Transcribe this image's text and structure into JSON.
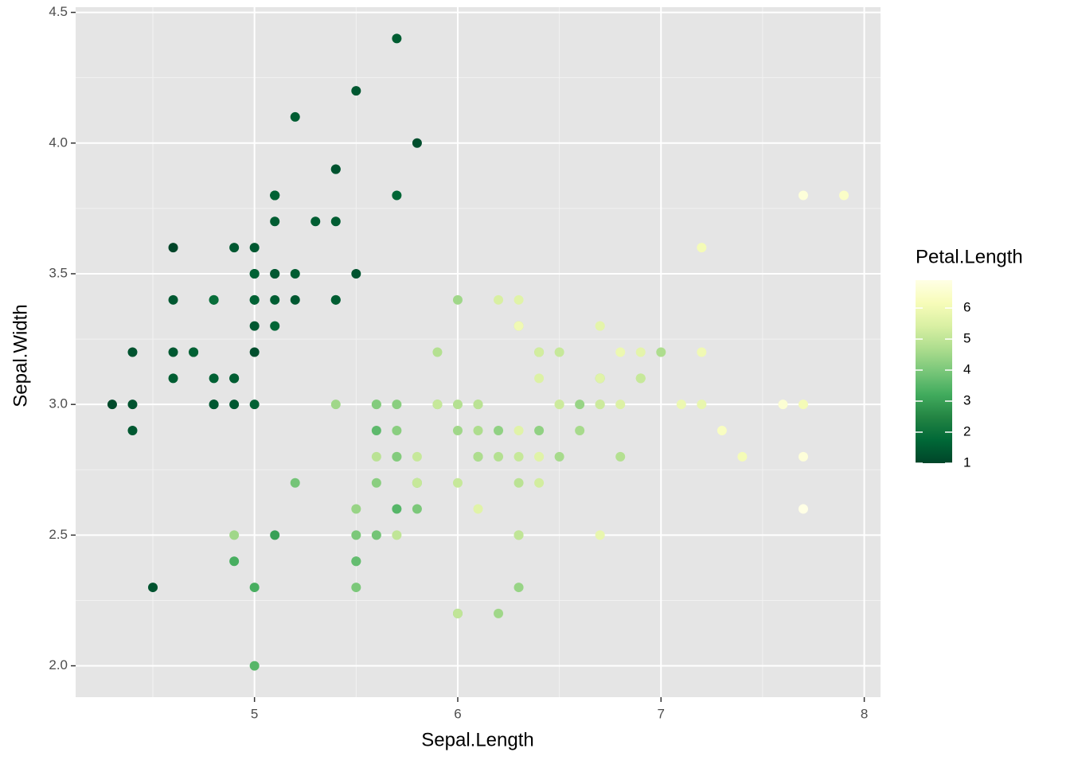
{
  "chart_data": {
    "type": "scatter",
    "x_label": "Sepal.Length",
    "y_label": "Sepal.Width",
    "x": [
      5.1,
      4.9,
      4.7,
      4.6,
      5.0,
      5.4,
      4.6,
      5.0,
      4.4,
      4.9,
      5.4,
      4.8,
      4.8,
      4.3,
      5.8,
      5.7,
      5.4,
      5.1,
      5.7,
      5.1,
      5.4,
      5.1,
      4.6,
      5.1,
      4.8,
      5.0,
      5.0,
      5.2,
      5.2,
      4.7,
      4.8,
      5.4,
      5.2,
      5.5,
      4.9,
      5.0,
      5.5,
      4.9,
      4.4,
      5.1,
      5.0,
      4.5,
      4.4,
      5.0,
      5.1,
      4.8,
      5.1,
      4.6,
      5.3,
      5.0,
      7.0,
      6.4,
      6.9,
      5.5,
      6.5,
      5.7,
      6.3,
      4.9,
      6.6,
      5.2,
      5.0,
      5.9,
      6.0,
      6.1,
      5.6,
      6.7,
      5.6,
      5.8,
      6.2,
      5.6,
      5.9,
      6.1,
      6.3,
      6.1,
      6.4,
      6.6,
      6.8,
      6.7,
      6.0,
      5.7,
      5.5,
      5.5,
      5.8,
      6.0,
      5.4,
      6.0,
      6.7,
      6.3,
      5.6,
      5.5,
      5.5,
      6.1,
      5.8,
      5.0,
      5.6,
      5.7,
      5.7,
      6.2,
      5.1,
      5.7,
      6.3,
      5.8,
      7.1,
      6.3,
      6.5,
      7.6,
      4.9,
      7.3,
      6.7,
      7.2,
      6.5,
      6.4,
      6.8,
      5.7,
      5.8,
      6.4,
      6.5,
      7.7,
      7.7,
      6.0,
      6.9,
      5.6,
      7.7,
      6.3,
      6.7,
      7.2,
      6.2,
      6.1,
      6.4,
      7.2,
      7.4,
      7.9,
      6.4,
      6.3,
      6.1,
      7.7,
      6.3,
      6.4,
      6.0,
      6.9,
      6.7,
      6.9,
      5.8,
      6.8,
      6.7,
      6.7,
      6.3,
      6.5,
      6.2,
      5.9
    ],
    "series": [
      {
        "values": [
          3.5,
          3.0,
          3.2,
          3.1,
          3.6,
          3.9,
          3.4,
          3.4,
          2.9,
          3.1,
          3.7,
          3.4,
          3.0,
          3.0,
          4.0,
          4.4,
          3.9,
          3.5,
          3.8,
          3.8,
          3.4,
          3.7,
          3.6,
          3.3,
          3.4,
          3.0,
          3.4,
          3.5,
          3.4,
          3.2,
          3.1,
          3.4,
          4.1,
          4.2,
          3.1,
          3.2,
          3.5,
          3.6,
          3.0,
          3.4,
          3.5,
          2.3,
          3.2,
          3.5,
          3.8,
          3.0,
          3.8,
          3.2,
          3.7,
          3.3,
          3.2,
          3.2,
          3.1,
          2.3,
          2.8,
          2.8,
          3.3,
          2.4,
          2.9,
          2.7,
          2.0,
          3.0,
          2.2,
          2.9,
          2.9,
          3.1,
          3.0,
          2.7,
          2.2,
          2.5,
          3.2,
          2.8,
          2.5,
          2.8,
          2.9,
          3.0,
          2.8,
          3.0,
          2.9,
          2.6,
          2.4,
          2.4,
          2.7,
          2.7,
          3.0,
          3.4,
          3.1,
          2.3,
          3.0,
          2.5,
          2.6,
          3.0,
          2.6,
          2.3,
          2.7,
          3.0,
          2.9,
          2.9,
          2.5,
          2.8,
          3.3,
          2.7,
          3.0,
          2.9,
          3.0,
          3.0,
          2.5,
          2.9,
          2.5,
          3.6,
          3.2,
          2.7,
          3.0,
          2.5,
          2.8,
          3.2,
          3.0,
          3.8,
          2.6,
          2.2,
          3.2,
          2.8,
          2.8,
          2.7,
          3.3,
          3.2,
          2.8,
          3.0,
          2.8,
          3.0,
          2.8,
          3.8,
          2.8,
          2.8,
          2.6,
          3.0,
          3.4,
          3.1,
          3.0,
          3.1,
          3.1,
          3.1,
          2.7,
          3.2,
          3.3,
          3.0,
          2.5,
          3.0,
          3.4,
          3.0
        ],
        "color_values": [
          1.4,
          1.4,
          1.3,
          1.5,
          1.4,
          1.7,
          1.4,
          1.5,
          1.4,
          1.5,
          1.5,
          1.6,
          1.4,
          1.1,
          1.2,
          1.5,
          1.3,
          1.4,
          1.7,
          1.5,
          1.7,
          1.5,
          1.0,
          1.7,
          1.9,
          1.6,
          1.6,
          1.5,
          1.4,
          1.6,
          1.6,
          1.5,
          1.5,
          1.4,
          1.5,
          1.2,
          1.3,
          1.4,
          1.3,
          1.5,
          1.3,
          1.3,
          1.3,
          1.6,
          1.9,
          1.4,
          1.6,
          1.4,
          1.5,
          1.4,
          4.7,
          4.5,
          4.9,
          4.0,
          4.6,
          4.5,
          4.7,
          3.3,
          4.6,
          3.9,
          3.5,
          4.2,
          4.0,
          4.7,
          3.6,
          4.4,
          4.5,
          4.1,
          4.5,
          3.9,
          4.8,
          4.0,
          4.9,
          4.7,
          4.3,
          4.4,
          4.8,
          5.0,
          4.5,
          3.5,
          3.8,
          3.7,
          3.9,
          5.1,
          4.5,
          4.5,
          4.7,
          4.4,
          4.1,
          4.0,
          4.4,
          4.6,
          4.0,
          3.3,
          4.2,
          4.2,
          4.2,
          4.3,
          3.0,
          4.1,
          6.0,
          5.1,
          5.9,
          5.6,
          5.8,
          6.6,
          4.5,
          6.3,
          5.8,
          6.1,
          5.1,
          5.3,
          5.5,
          5.0,
          5.1,
          5.3,
          5.5,
          6.7,
          6.9,
          5.0,
          5.7,
          4.9,
          6.7,
          4.9,
          5.7,
          6.0,
          4.8,
          4.9,
          5.6,
          5.8,
          6.1,
          6.4,
          5.6,
          5.1,
          5.6,
          6.1,
          5.6,
          5.5,
          4.8,
          5.4,
          5.6,
          5.1,
          5.1,
          5.9,
          5.7,
          5.2,
          5.0,
          5.2,
          5.4,
          5.1
        ]
      }
    ],
    "xlim": [
      4.12,
      8.08
    ],
    "xticks": [
      5,
      6,
      7,
      8
    ],
    "xminor": [
      4.5,
      5.5,
      6.5,
      7.5
    ],
    "ylim": [
      1.88,
      4.52
    ],
    "yticks": [
      {
        "value": 2,
        "label": "2.0"
      },
      {
        "value": 2.5,
        "label": "2.5"
      },
      {
        "value": 3,
        "label": "3.0"
      },
      {
        "value": 3.5,
        "label": "3.5"
      },
      {
        "value": 4,
        "label": "4.0"
      },
      {
        "value": 4.5,
        "label": "4.5"
      }
    ],
    "yminor": [
      2.25,
      2.75,
      3.25,
      3.75,
      4.25
    ],
    "grid": true,
    "legend": {
      "title": "Petal.Length",
      "lim": [
        1,
        6.9
      ],
      "ticks": [
        1,
        2,
        3,
        4,
        5,
        6
      ],
      "position": "right",
      "colors": [
        "#004529",
        "#006837",
        "#238443",
        "#41ab5d",
        "#78c679",
        "#addd8e",
        "#d9f0a3",
        "#f7fcb9",
        "#ffffe5"
      ]
    }
  }
}
